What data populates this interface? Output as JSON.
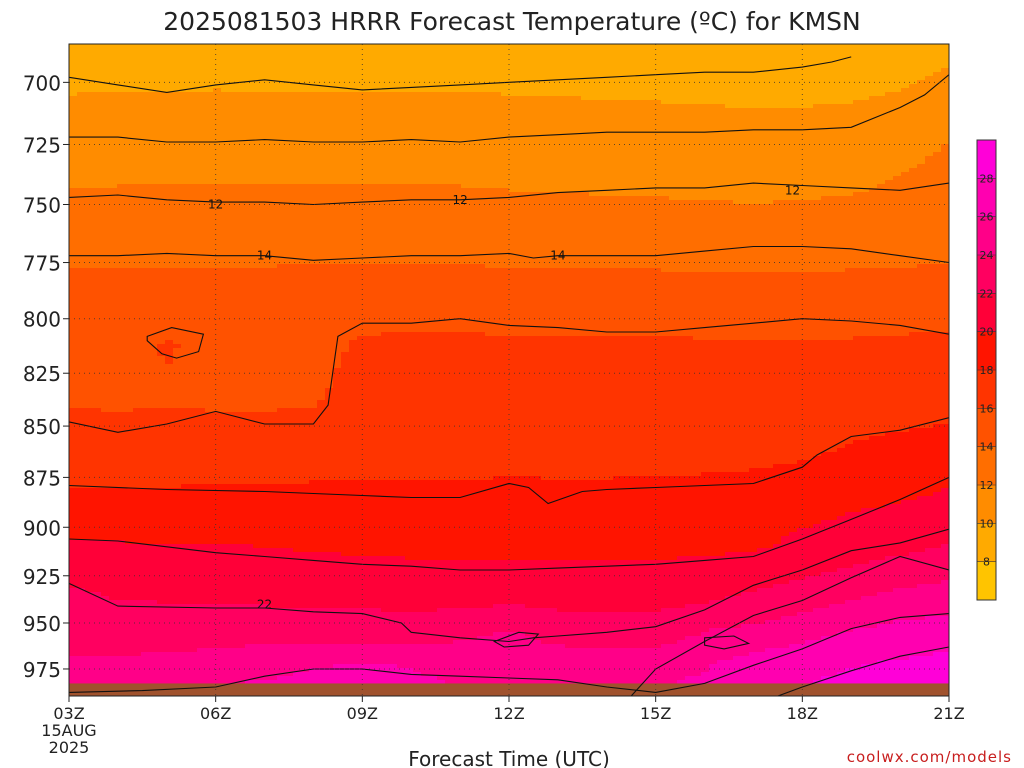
{
  "chart_data": {
    "type": "heatmap",
    "title": "2025081503 HRRR Forecast Temperature (ºC) for KMSN",
    "xlabel": "Forecast Time (UTC)",
    "ylabel": "",
    "credit": "coolwx.com/models",
    "x_range_hours": [
      0,
      18
    ],
    "y_range_hpa": [
      685,
      990
    ],
    "y_scale": "log-pressure (inverted)",
    "grid": true,
    "x_ticks": [
      {
        "hour": 0,
        "label": "03Z",
        "sub1": "15AUG",
        "sub2": "2025"
      },
      {
        "hour": 3,
        "label": "06Z"
      },
      {
        "hour": 6,
        "label": "09Z"
      },
      {
        "hour": 9,
        "label": "12Z"
      },
      {
        "hour": 12,
        "label": "15Z"
      },
      {
        "hour": 15,
        "label": "18Z"
      },
      {
        "hour": 18,
        "label": "21Z"
      }
    ],
    "y_ticks": [
      700,
      725,
      750,
      775,
      800,
      825,
      850,
      875,
      900,
      925,
      950,
      975
    ],
    "ground_pressure_hpa": 983,
    "colorbar": {
      "position": "right",
      "levels": [
        6,
        8,
        10,
        12,
        14,
        16,
        18,
        20,
        22,
        24,
        26,
        28,
        30
      ],
      "tick_labels": [
        "8",
        "10",
        "12",
        "14",
        "16",
        "18",
        "20",
        "22",
        "24",
        "26",
        "28"
      ],
      "colors": [
        "#ffc400",
        "#ffaa00",
        "#ff8c00",
        "#ff6e00",
        "#ff5200",
        "#ff3400",
        "#ff1400",
        "#ff0038",
        "#ff0060",
        "#ff0088",
        "#ff00b0",
        "#ff00d8"
      ]
    },
    "contour_labels": [
      {
        "text": "12",
        "hour": 3.0,
        "hpa": 750
      },
      {
        "text": "12",
        "hour": 8.0,
        "hpa": 748
      },
      {
        "text": "12",
        "hour": 14.8,
        "hpa": 744
      },
      {
        "text": "14",
        "hour": 4.0,
        "hpa": 772
      },
      {
        "text": "14",
        "hour": 10.0,
        "hpa": 772
      },
      {
        "text": "22",
        "hour": 4.0,
        "hpa": 940
      }
    ],
    "isotherms": [
      {
        "value": 10,
        "points": [
          [
            0,
            698
          ],
          [
            1,
            701
          ],
          [
            2,
            704
          ],
          [
            3,
            701
          ],
          [
            4,
            699
          ],
          [
            5,
            701
          ],
          [
            6,
            703
          ],
          [
            7,
            702
          ],
          [
            8,
            701
          ],
          [
            9,
            700
          ],
          [
            10,
            699
          ],
          [
            11,
            698
          ],
          [
            12,
            697
          ],
          [
            13,
            696
          ],
          [
            14,
            696
          ],
          [
            15,
            694
          ],
          [
            15.6,
            692
          ],
          [
            16,
            690
          ]
        ]
      },
      {
        "value": 11,
        "points": [
          [
            0,
            722
          ],
          [
            1,
            722
          ],
          [
            2,
            724
          ],
          [
            3,
            724
          ],
          [
            4,
            723
          ],
          [
            5,
            724
          ],
          [
            6,
            724
          ],
          [
            7,
            723
          ],
          [
            8,
            724
          ],
          [
            9,
            722
          ],
          [
            10,
            721
          ],
          [
            11,
            720
          ],
          [
            12,
            720
          ],
          [
            13,
            720
          ],
          [
            14,
            719
          ],
          [
            15,
            719
          ],
          [
            16,
            718
          ],
          [
            17,
            710
          ],
          [
            17.5,
            705
          ],
          [
            18,
            697
          ]
        ]
      },
      {
        "value": 12,
        "points": [
          [
            0,
            747
          ],
          [
            1,
            746
          ],
          [
            2,
            748
          ],
          [
            3,
            749
          ],
          [
            4,
            749
          ],
          [
            5,
            750
          ],
          [
            6,
            749
          ],
          [
            7,
            748
          ],
          [
            8,
            748
          ],
          [
            9,
            747
          ],
          [
            10,
            745
          ],
          [
            11,
            744
          ],
          [
            12,
            743
          ],
          [
            13,
            743
          ],
          [
            14,
            741
          ],
          [
            15,
            742
          ],
          [
            16,
            743
          ],
          [
            17,
            744
          ],
          [
            18,
            741
          ]
        ]
      },
      {
        "value": 14,
        "points": [
          [
            0,
            772
          ],
          [
            1,
            772
          ],
          [
            2,
            771
          ],
          [
            3,
            772
          ],
          [
            4,
            772
          ],
          [
            5,
            774
          ],
          [
            6,
            773
          ],
          [
            7,
            772
          ],
          [
            8,
            772
          ],
          [
            9,
            771
          ],
          [
            9.5,
            773
          ],
          [
            10,
            772
          ],
          [
            11,
            772
          ],
          [
            12,
            772
          ],
          [
            13,
            770
          ],
          [
            14,
            768
          ],
          [
            15,
            768
          ],
          [
            16,
            769
          ],
          [
            17,
            772
          ],
          [
            18,
            775
          ]
        ]
      },
      {
        "value": 16,
        "points": [
          [
            0,
            848
          ],
          [
            1,
            853
          ],
          [
            2,
            849
          ],
          [
            3,
            843
          ],
          [
            4,
            849
          ],
          [
            5,
            849
          ],
          [
            5.3,
            840
          ],
          [
            5.5,
            808
          ],
          [
            6,
            802
          ],
          [
            7,
            802
          ],
          [
            8,
            800
          ],
          [
            9,
            803
          ],
          [
            10,
            804
          ],
          [
            11,
            806
          ],
          [
            12,
            806
          ],
          [
            13,
            804
          ],
          [
            14,
            802
          ],
          [
            15,
            800
          ],
          [
            16,
            801
          ],
          [
            17,
            803
          ],
          [
            18,
            807
          ]
        ]
      },
      {
        "value": 16,
        "closed": true,
        "points": [
          [
            1.6,
            808
          ],
          [
            2.1,
            804
          ],
          [
            2.75,
            807
          ],
          [
            2.65,
            815
          ],
          [
            2.2,
            818
          ],
          [
            1.9,
            816
          ],
          [
            1.6,
            810
          ]
        ]
      },
      {
        "value": 18,
        "points": [
          [
            0,
            879
          ],
          [
            2,
            881
          ],
          [
            4,
            882
          ],
          [
            6,
            884
          ],
          [
            7,
            885
          ],
          [
            8,
            885
          ],
          [
            9,
            878
          ],
          [
            9.4,
            880
          ],
          [
            9.8,
            888
          ],
          [
            10.5,
            882
          ],
          [
            11,
            881
          ],
          [
            12,
            880
          ],
          [
            13,
            879
          ],
          [
            14,
            878
          ],
          [
            15,
            870
          ],
          [
            15.3,
            864
          ],
          [
            16,
            855
          ],
          [
            17,
            852
          ],
          [
            18,
            846
          ]
        ]
      },
      {
        "value": 20,
        "points": [
          [
            0,
            906
          ],
          [
            1,
            907
          ],
          [
            2,
            910
          ],
          [
            3,
            913
          ],
          [
            4,
            915
          ],
          [
            5,
            917
          ],
          [
            6,
            919
          ],
          [
            7,
            920
          ],
          [
            8,
            922
          ],
          [
            9,
            922
          ],
          [
            10,
            921
          ],
          [
            11,
            920
          ],
          [
            12,
            919
          ],
          [
            13,
            917
          ],
          [
            14,
            915
          ],
          [
            15,
            906
          ],
          [
            16,
            896
          ],
          [
            17,
            886
          ],
          [
            18,
            875
          ]
        ]
      },
      {
        "value": 22,
        "points": [
          [
            0,
            929
          ],
          [
            1,
            941
          ],
          [
            3,
            942
          ],
          [
            4,
            942
          ],
          [
            5,
            944
          ],
          [
            6,
            945
          ],
          [
            6.8,
            950
          ],
          [
            7,
            955
          ],
          [
            8,
            958
          ],
          [
            9,
            960
          ],
          [
            9.5,
            958
          ],
          [
            10,
            957
          ],
          [
            11,
            955
          ],
          [
            12,
            952
          ],
          [
            13,
            943
          ],
          [
            14,
            930
          ],
          [
            15,
            922
          ],
          [
            16,
            912
          ],
          [
            17,
            908
          ],
          [
            18,
            901
          ]
        ]
      },
      {
        "value": 24,
        "points": [
          [
            11.5,
            990
          ],
          [
            12,
            975
          ],
          [
            13,
            960
          ],
          [
            14,
            946
          ],
          [
            15,
            938
          ],
          [
            16,
            926
          ],
          [
            17,
            915
          ],
          [
            18,
            922
          ]
        ]
      },
      {
        "value": 24,
        "closed": true,
        "points": [
          [
            8.7,
            960
          ],
          [
            9.2,
            955
          ],
          [
            9.6,
            956
          ],
          [
            9.4,
            962
          ],
          [
            8.9,
            963
          ]
        ]
      },
      {
        "value": 24,
        "closed": true,
        "points": [
          [
            13.0,
            958
          ],
          [
            13.6,
            957
          ],
          [
            13.9,
            961
          ],
          [
            13.4,
            964
          ],
          [
            13.0,
            962
          ]
        ]
      },
      {
        "value": 26,
        "points": [
          [
            0,
            988
          ],
          [
            1.5,
            987
          ],
          [
            3,
            985
          ],
          [
            4,
            979
          ],
          [
            5,
            975
          ],
          [
            6,
            975
          ],
          [
            7,
            978
          ],
          [
            8,
            979
          ],
          [
            9,
            980
          ],
          [
            10,
            981
          ],
          [
            11,
            985
          ],
          [
            12,
            988
          ],
          [
            13,
            983
          ],
          [
            14,
            973
          ],
          [
            15,
            964
          ],
          [
            16,
            953
          ],
          [
            17,
            947
          ],
          [
            18,
            945
          ]
        ]
      },
      {
        "value": 26,
        "points": [
          [
            14.5,
            990
          ],
          [
            15,
            985
          ],
          [
            16,
            976
          ],
          [
            17,
            968
          ],
          [
            18,
            963
          ]
        ]
      }
    ],
    "temperature_field": [
      {
        "hpa": 690,
        "t": [
          8.6,
          8.6,
          8.7,
          8.7,
          8.6,
          8.7,
          8.7,
          8.7,
          8.6,
          8.6,
          8.5,
          8.5,
          8.4,
          8.3,
          8.2,
          8.2,
          8.3,
          8.6,
          9.6
        ]
      },
      {
        "hpa": 710,
        "t": [
          10.5,
          10.6,
          10.6,
          10.7,
          10.6,
          10.6,
          10.6,
          10.6,
          10.6,
          10.5,
          10.4,
          10.3,
          10.2,
          10.1,
          10.0,
          10.0,
          10.2,
          10.7,
          11.5
        ]
      },
      {
        "hpa": 735,
        "t": [
          11.5,
          11.6,
          11.6,
          11.6,
          11.6,
          11.6,
          11.6,
          11.6,
          11.6,
          11.5,
          11.4,
          11.3,
          11.3,
          11.2,
          11.2,
          11.2,
          11.4,
          11.9,
          12.4
        ]
      },
      {
        "hpa": 760,
        "t": [
          13.0,
          13.0,
          13.0,
          13.0,
          13.0,
          13.1,
          13.0,
          13.0,
          13.0,
          12.9,
          12.9,
          12.9,
          12.8,
          12.7,
          12.6,
          12.7,
          12.8,
          12.9,
          13.1
        ]
      },
      {
        "hpa": 790,
        "t": [
          14.8,
          14.8,
          14.8,
          14.8,
          14.8,
          14.8,
          14.9,
          14.9,
          14.9,
          14.8,
          14.8,
          14.8,
          14.8,
          14.7,
          14.7,
          14.7,
          14.8,
          14.8,
          14.9
        ]
      },
      {
        "hpa": 812,
        "t": [
          15.2,
          15.2,
          16.2,
          15.3,
          15.3,
          15.3,
          16.3,
          16.4,
          16.4,
          16.3,
          16.3,
          16.3,
          16.3,
          16.2,
          16.1,
          16.1,
          16.2,
          16.3,
          16.5
        ]
      },
      {
        "hpa": 835,
        "t": [
          15.7,
          15.6,
          15.7,
          15.6,
          15.6,
          15.7,
          16.8,
          16.9,
          16.9,
          16.9,
          16.9,
          16.9,
          16.9,
          16.9,
          16.9,
          16.8,
          16.9,
          17.1,
          17.3
        ]
      },
      {
        "hpa": 860,
        "t": [
          16.9,
          16.9,
          16.9,
          16.9,
          16.9,
          16.9,
          17.0,
          17.0,
          17.0,
          17.0,
          17.0,
          17.0,
          17.1,
          17.1,
          17.2,
          17.5,
          18.1,
          18.4,
          18.6
        ]
      },
      {
        "hpa": 885,
        "t": [
          18.3,
          18.3,
          18.3,
          18.4,
          18.4,
          18.5,
          18.5,
          18.5,
          18.5,
          18.7,
          18.6,
          18.6,
          18.7,
          18.8,
          19.0,
          19.3,
          19.6,
          19.8,
          20.3
        ]
      },
      {
        "hpa": 910,
        "t": [
          20.2,
          20.2,
          20.1,
          20.1,
          20.0,
          19.8,
          19.7,
          19.6,
          19.5,
          19.5,
          19.5,
          19.5,
          19.6,
          19.6,
          19.8,
          20.4,
          20.9,
          21.5,
          22.2
        ]
      },
      {
        "hpa": 935,
        "t": [
          22.4,
          21.8,
          21.7,
          21.6,
          21.5,
          21.5,
          21.4,
          21.3,
          21.2,
          21.2,
          21.2,
          21.3,
          21.3,
          21.4,
          22.2,
          22.8,
          23.6,
          24.4,
          24.8
        ]
      },
      {
        "hpa": 955,
        "t": [
          23.1,
          23.1,
          23.2,
          23.2,
          23.2,
          23.1,
          23.0,
          22.8,
          23.4,
          24.2,
          23.1,
          22.9,
          22.8,
          24.1,
          24.5,
          25.2,
          26.1,
          26.8,
          26.9
        ]
      },
      {
        "hpa": 972,
        "t": [
          24.2,
          24.3,
          24.5,
          24.7,
          25.2,
          25.8,
          26.1,
          25.9,
          25.4,
          25.3,
          25.2,
          25.0,
          25.3,
          25.8,
          26.7,
          27.6,
          27.9,
          28.2,
          28.6
        ]
      },
      {
        "hpa": 990,
        "t": [
          25.8,
          26.0,
          26.3,
          26.6,
          26.8,
          26.9,
          26.7,
          26.5,
          26.3,
          26.2,
          26.1,
          26.0,
          26.2,
          26.6,
          27.3,
          28.1,
          28.6,
          29.0,
          29.4
        ]
      }
    ]
  }
}
